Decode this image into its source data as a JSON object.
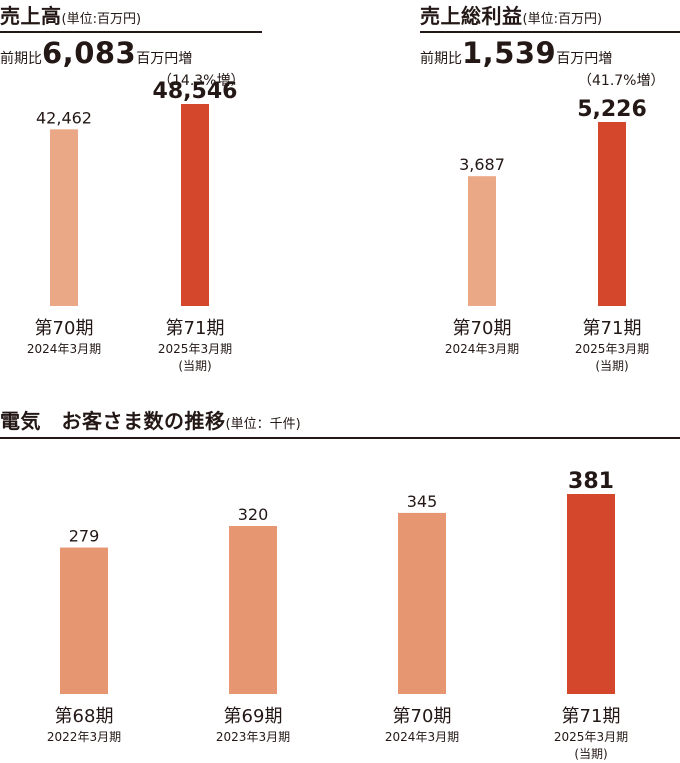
{
  "colors": {
    "light": "#EAA887",
    "current": "#D5472C",
    "medium": "#E69670",
    "text": "#231815"
  },
  "sales": {
    "title": "売上高",
    "unit": "(単位:百万円)",
    "delta_label": "前期比",
    "delta_value": "6,083",
    "delta_unit": "百万円増",
    "delta_pct": "（14.3%増）"
  },
  "profit": {
    "title": "売上総利益",
    "unit": "(単位:百万円)",
    "delta_label": "前期比",
    "delta_value": "1,539",
    "delta_unit": "百万円増",
    "delta_pct": "（41.7%増）"
  },
  "customers": {
    "title": "電気　お客さま数の推移",
    "unit": "(単位：千件)"
  },
  "chart_data": [
    {
      "type": "bar",
      "title": "売上高",
      "unit": "百万円",
      "categories": [
        "第70期",
        "第71期"
      ],
      "dates": [
        "2024年3月期",
        "2025年3月期"
      ],
      "notes": [
        "",
        "(当期)"
      ],
      "values": [
        42462,
        48546
      ],
      "labels": [
        "42,462",
        "48,546"
      ],
      "ylim": [
        0,
        48546
      ]
    },
    {
      "type": "bar",
      "title": "売上総利益",
      "unit": "百万円",
      "categories": [
        "第70期",
        "第71期"
      ],
      "dates": [
        "2024年3月期",
        "2025年3月期"
      ],
      "notes": [
        "",
        "(当期)"
      ],
      "values": [
        3687,
        5226
      ],
      "labels": [
        "3,687",
        "5,226"
      ],
      "ylim": [
        0,
        5226
      ]
    },
    {
      "type": "bar",
      "title": "電気　お客さま数の推移",
      "unit": "千件",
      "categories": [
        "第68期",
        "第69期",
        "第70期",
        "第71期"
      ],
      "dates": [
        "2022年3月期",
        "2023年3月期",
        "2024年3月期",
        "2025年3月期"
      ],
      "notes": [
        "",
        "",
        "",
        "(当期)"
      ],
      "values": [
        279,
        320,
        345,
        381
      ],
      "labels": [
        "279",
        "320",
        "345",
        "381"
      ],
      "ylim": [
        0,
        381
      ]
    }
  ]
}
